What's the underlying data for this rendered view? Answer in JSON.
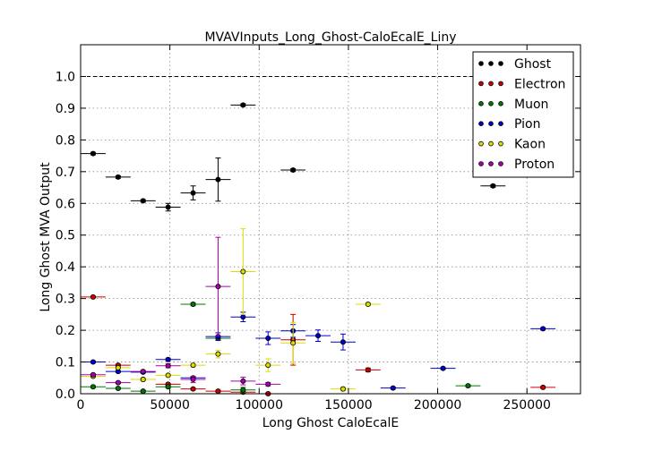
{
  "chart_data": {
    "type": "scatter",
    "title": "MVAVInputs_Long_Ghost-CaloEcalE_Liny",
    "xlabel": "Long Ghost CaloEcalE",
    "ylabel": "Long Ghost MVA Output",
    "xlim": [
      0,
      280000
    ],
    "ylim": [
      0,
      1.1
    ],
    "x_ticks": [
      0,
      50000,
      100000,
      150000,
      200000,
      250000
    ],
    "x_tick_labels": [
      "0",
      "50000",
      "100000",
      "150000",
      "200000",
      "250000"
    ],
    "y_ticks": [
      0.0,
      0.1,
      0.2,
      0.3,
      0.4,
      0.5,
      0.6,
      0.7,
      0.8,
      0.9,
      1.0
    ],
    "y_tick_labels": [
      "0.0",
      "0.1",
      "0.2",
      "0.3",
      "0.4",
      "0.5",
      "0.6",
      "0.7",
      "0.8",
      "0.9",
      "1.0"
    ],
    "reference_line": 1.0,
    "grid": true,
    "legend_position": "top-right",
    "series": [
      {
        "name": "Ghost",
        "color": "#000000",
        "points": [
          {
            "x": 7000,
            "y": 0.757,
            "xerr": 7000,
            "yerr": 0.004
          },
          {
            "x": 21000,
            "y": 0.683,
            "xerr": 7000,
            "yerr": 0.004
          },
          {
            "x": 35000,
            "y": 0.608,
            "xerr": 7000,
            "yerr": 0.004
          },
          {
            "x": 49000,
            "y": 0.588,
            "xerr": 7000,
            "yerr": 0.012
          },
          {
            "x": 63000,
            "y": 0.633,
            "xerr": 7000,
            "yerr": 0.022
          },
          {
            "x": 77000,
            "y": 0.675,
            "xerr": 7000,
            "yerr": 0.068
          },
          {
            "x": 91000,
            "y": 0.91,
            "xerr": 7000,
            "yerr": 0.004
          },
          {
            "x": 119000,
            "y": 0.705,
            "xerr": 7000,
            "yerr": 0.004
          },
          {
            "x": 231000,
            "y": 0.655,
            "xerr": 7000,
            "yerr": 0.004
          }
        ]
      },
      {
        "name": "Electron",
        "color": "#cc0000",
        "points": [
          {
            "x": 7000,
            "y": 0.305,
            "xerr": 7000,
            "yerr": 0.003
          },
          {
            "x": 21000,
            "y": 0.09,
            "xerr": 7000,
            "yerr": 0.003
          },
          {
            "x": 35000,
            "y": 0.045,
            "xerr": 7000,
            "yerr": 0.003
          },
          {
            "x": 49000,
            "y": 0.03,
            "xerr": 7000,
            "yerr": 0.003
          },
          {
            "x": 63000,
            "y": 0.015,
            "xerr": 7000,
            "yerr": 0.003
          },
          {
            "x": 77000,
            "y": 0.008,
            "xerr": 7000,
            "yerr": 0.003
          },
          {
            "x": 91000,
            "y": 0.005,
            "xerr": 7000,
            "yerr": 0.003
          },
          {
            "x": 105000,
            "y": 0.0,
            "xerr": 7000,
            "yerr": 0.003
          },
          {
            "x": 119000,
            "y": 0.17,
            "xerr": 7000,
            "yerr": 0.08
          },
          {
            "x": 161000,
            "y": 0.075,
            "xerr": 7000,
            "yerr": 0.006
          },
          {
            "x": 259000,
            "y": 0.02,
            "xerr": 7000,
            "yerr": 0.003
          }
        ]
      },
      {
        "name": "Muon",
        "color": "#007700",
        "points": [
          {
            "x": 7000,
            "y": 0.022,
            "xerr": 7000,
            "yerr": 0.003
          },
          {
            "x": 21000,
            "y": 0.017,
            "xerr": 7000,
            "yerr": 0.003
          },
          {
            "x": 35000,
            "y": 0.008,
            "xerr": 7000,
            "yerr": 0.003
          },
          {
            "x": 49000,
            "y": 0.022,
            "xerr": 7000,
            "yerr": 0.003
          },
          {
            "x": 63000,
            "y": 0.282,
            "xerr": 7000,
            "yerr": 0.005
          },
          {
            "x": 77000,
            "y": 0.175,
            "xerr": 7000,
            "yerr": 0.006
          },
          {
            "x": 91000,
            "y": 0.012,
            "xerr": 7000,
            "yerr": 0.008
          },
          {
            "x": 217000,
            "y": 0.025,
            "xerr": 7000,
            "yerr": 0.003
          }
        ]
      },
      {
        "name": "Pion",
        "color": "#0000cc",
        "points": [
          {
            "x": 7000,
            "y": 0.1,
            "xerr": 7000,
            "yerr": 0.003
          },
          {
            "x": 21000,
            "y": 0.07,
            "xerr": 7000,
            "yerr": 0.003
          },
          {
            "x": 35000,
            "y": 0.068,
            "xerr": 7000,
            "yerr": 0.003
          },
          {
            "x": 49000,
            "y": 0.108,
            "xerr": 7000,
            "yerr": 0.004
          },
          {
            "x": 63000,
            "y": 0.05,
            "xerr": 7000,
            "yerr": 0.004
          },
          {
            "x": 77000,
            "y": 0.18,
            "xerr": 7000,
            "yerr": 0.012
          },
          {
            "x": 91000,
            "y": 0.242,
            "xerr": 7000,
            "yerr": 0.015
          },
          {
            "x": 105000,
            "y": 0.175,
            "xerr": 7000,
            "yerr": 0.02
          },
          {
            "x": 119000,
            "y": 0.198,
            "xerr": 7000,
            "yerr": 0.02
          },
          {
            "x": 133000,
            "y": 0.183,
            "xerr": 7000,
            "yerr": 0.018
          },
          {
            "x": 147000,
            "y": 0.163,
            "xerr": 7000,
            "yerr": 0.025
          },
          {
            "x": 175000,
            "y": 0.018,
            "xerr": 7000,
            "yerr": 0.003
          },
          {
            "x": 203000,
            "y": 0.08,
            "xerr": 7000,
            "yerr": 0.003
          },
          {
            "x": 259000,
            "y": 0.205,
            "xerr": 7000,
            "yerr": 0.003
          }
        ]
      },
      {
        "name": "Kaon",
        "color": "#dddd00",
        "points": [
          {
            "x": 7000,
            "y": 0.055,
            "xerr": 7000,
            "yerr": 0.003
          },
          {
            "x": 21000,
            "y": 0.082,
            "xerr": 7000,
            "yerr": 0.003
          },
          {
            "x": 35000,
            "y": 0.045,
            "xerr": 7000,
            "yerr": 0.003
          },
          {
            "x": 49000,
            "y": 0.058,
            "xerr": 7000,
            "yerr": 0.004
          },
          {
            "x": 63000,
            "y": 0.09,
            "xerr": 7000,
            "yerr": 0.006
          },
          {
            "x": 77000,
            "y": 0.125,
            "xerr": 7000,
            "yerr": 0.012
          },
          {
            "x": 91000,
            "y": 0.385,
            "xerr": 7000,
            "yerr": 0.135
          },
          {
            "x": 105000,
            "y": 0.09,
            "xerr": 7000,
            "yerr": 0.02
          },
          {
            "x": 119000,
            "y": 0.16,
            "xerr": 7000,
            "yerr": 0.065
          },
          {
            "x": 147000,
            "y": 0.015,
            "xerr": 7000,
            "yerr": 0.006
          },
          {
            "x": 161000,
            "y": 0.282,
            "xerr": 7000,
            "yerr": 0.004
          }
        ]
      },
      {
        "name": "Proton",
        "color": "#aa00aa",
        "points": [
          {
            "x": 7000,
            "y": 0.06,
            "xerr": 7000,
            "yerr": 0.003
          },
          {
            "x": 21000,
            "y": 0.035,
            "xerr": 7000,
            "yerr": 0.003
          },
          {
            "x": 35000,
            "y": 0.07,
            "xerr": 7000,
            "yerr": 0.003
          },
          {
            "x": 49000,
            "y": 0.088,
            "xerr": 7000,
            "yerr": 0.006
          },
          {
            "x": 63000,
            "y": 0.045,
            "xerr": 7000,
            "yerr": 0.01
          },
          {
            "x": 77000,
            "y": 0.338,
            "xerr": 7000,
            "yerr": 0.155
          },
          {
            "x": 91000,
            "y": 0.04,
            "xerr": 7000,
            "yerr": 0.012
          },
          {
            "x": 105000,
            "y": 0.03,
            "xerr": 7000,
            "yerr": 0.005
          }
        ]
      }
    ]
  }
}
